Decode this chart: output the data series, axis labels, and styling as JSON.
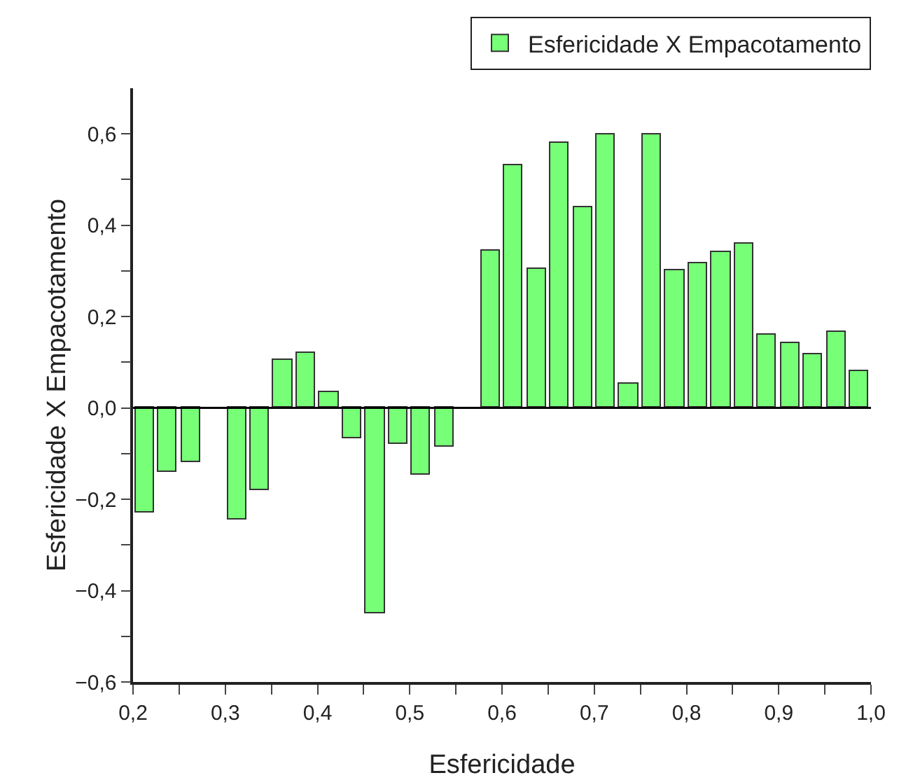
{
  "chart_data": {
    "type": "bar",
    "xlabel": "Esfericidade",
    "ylabel": "Esfericidade X Empacotamento",
    "x": [
      0.2125,
      0.2375,
      0.2625,
      0.2875,
      0.3125,
      0.3375,
      0.3625,
      0.3875,
      0.4125,
      0.4375,
      0.4625,
      0.4875,
      0.5125,
      0.5375,
      0.5625,
      0.5875,
      0.6125,
      0.6375,
      0.6625,
      0.6875,
      0.7125,
      0.7375,
      0.7625,
      0.7875,
      0.8125,
      0.8375,
      0.8625,
      0.8875,
      0.9125,
      0.9375,
      0.9625,
      0.9875
    ],
    "series": [
      {
        "name": "Esfericidade X Empacotamento",
        "color": "#77ff77",
        "values": [
          -0.23,
          -0.14,
          -0.12,
          null,
          -0.245,
          -0.18,
          0.104,
          0.12,
          0.036,
          -0.065,
          -0.45,
          -0.079,
          -0.146,
          -0.084,
          null,
          0.345,
          0.53,
          0.303,
          0.58,
          0.44,
          0.598,
          0.054,
          0.598,
          0.301,
          0.318,
          0.34,
          0.36,
          0.159,
          0.142,
          0.116,
          0.168,
          0.08
        ]
      }
    ],
    "xlim": [
      0.2,
      1.0
    ],
    "xticks": [
      {
        "value": 0.2,
        "label": "0,2"
      },
      {
        "value": 0.25,
        "label": null
      },
      {
        "value": 0.3,
        "label": "0,3"
      },
      {
        "value": 0.35,
        "label": null
      },
      {
        "value": 0.4,
        "label": "0,4"
      },
      {
        "value": 0.45,
        "label": null
      },
      {
        "value": 0.5,
        "label": "0,5"
      },
      {
        "value": 0.55,
        "label": null
      },
      {
        "value": 0.6,
        "label": "0,6"
      },
      {
        "value": 0.65,
        "label": null
      },
      {
        "value": 0.7,
        "label": "0,7"
      },
      {
        "value": 0.75,
        "label": null
      },
      {
        "value": 0.8,
        "label": "0,8"
      },
      {
        "value": 0.85,
        "label": null
      },
      {
        "value": 0.9,
        "label": "0,9"
      },
      {
        "value": 0.95,
        "label": null
      },
      {
        "value": 1.0,
        "label": "1,0"
      }
    ],
    "ylim": [
      -0.6,
      0.7
    ],
    "yticks": [
      {
        "value": -0.6,
        "label": "−0,6"
      },
      {
        "value": -0.5,
        "label": null
      },
      {
        "value": -0.4,
        "label": "−0,4"
      },
      {
        "value": -0.3,
        "label": null
      },
      {
        "value": -0.2,
        "label": "−0,2"
      },
      {
        "value": -0.1,
        "label": null
      },
      {
        "value": 0,
        "label": "0,0"
      },
      {
        "value": 0.1,
        "label": null
      },
      {
        "value": 0.2,
        "label": "0,2"
      },
      {
        "value": 0.3,
        "label": null
      },
      {
        "value": 0.4,
        "label": "0,4"
      },
      {
        "value": 0.5,
        "label": null
      },
      {
        "value": 0.6,
        "label": "0,6"
      }
    ],
    "ref_lines": [
      {
        "axis": "y",
        "value": 0,
        "color": "#000000"
      }
    ],
    "grid": false,
    "legend": "top right"
  }
}
